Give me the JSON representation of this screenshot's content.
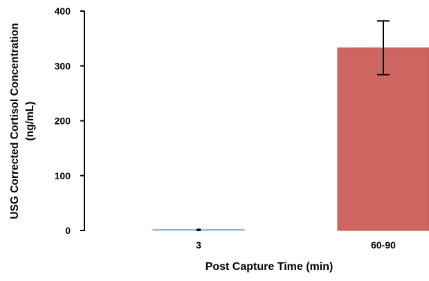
{
  "chart_data": {
    "type": "bar",
    "categories": [
      "3",
      "60-90"
    ],
    "values": [
      1,
      333
    ],
    "error": [
      1,
      49
    ],
    "ylabel": "USG Corrected Cortisol Concentration (ng/mL)",
    "ylabel_lines": [
      "USG Corrected Cortisol Concentration",
      "(ng/mL)"
    ],
    "xlabel": "Post Capture Time (min)",
    "ylim": [
      0,
      400
    ],
    "yticks": [
      0,
      100,
      200,
      300,
      400
    ],
    "bar_colors": [
      "#B9D3EE",
      "#CD6660"
    ],
    "bar_edge_colors": [
      "#8FB3DB",
      "#B9524C"
    ],
    "grid": false,
    "legend": "none"
  }
}
